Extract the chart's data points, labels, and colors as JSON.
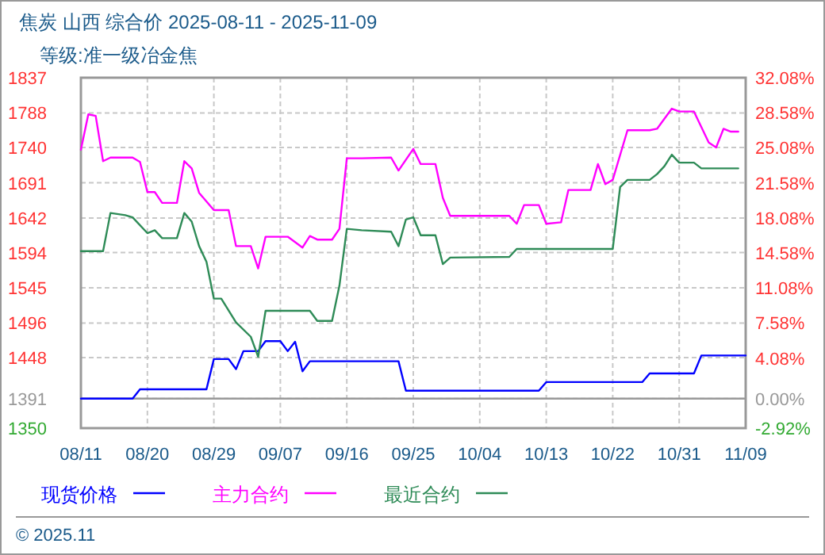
{
  "chart_data": {
    "type": "line",
    "title": "焦炭  山西  综合价  2025-08-11 - 2025-11-09",
    "subtitle": "等级:准一级冶金焦",
    "xlim": [
      "2025-08-11",
      "2025-11-09"
    ],
    "xticks": [
      {
        "value": "2025-08-11",
        "label": "08/11"
      },
      {
        "value": "2025-08-20",
        "label": "08/20"
      },
      {
        "value": "2025-08-29",
        "label": "08/29"
      },
      {
        "value": "2025-09-07",
        "label": "09/07"
      },
      {
        "value": "2025-09-16",
        "label": "09/16"
      },
      {
        "value": "2025-09-25",
        "label": "09/25"
      },
      {
        "value": "2025-10-04",
        "label": "10/04"
      },
      {
        "value": "2025-10-13",
        "label": "10/13"
      },
      {
        "value": "2025-10-22",
        "label": "10/22"
      },
      {
        "value": "2025-10-31",
        "label": "10/31"
      },
      {
        "value": "2025-11-09",
        "label": "11/09"
      }
    ],
    "ylim": [
      1350,
      1837
    ],
    "yticks": [
      1350,
      1391,
      1448,
      1496,
      1545,
      1594,
      1642,
      1691,
      1740,
      1788,
      1837
    ],
    "y2lim": [
      -2.92,
      32.08
    ],
    "y2ticks": [
      {
        "value": -2.92,
        "label": "-2.92%"
      },
      {
        "value": 0,
        "label": "0.00%"
      },
      {
        "value": 4.08,
        "label": "4.08%"
      },
      {
        "value": 7.58,
        "label": "7.58%"
      },
      {
        "value": 11.08,
        "label": "11.08%"
      },
      {
        "value": 14.58,
        "label": "14.58%"
      },
      {
        "value": 18.08,
        "label": "18.08%"
      },
      {
        "value": 21.58,
        "label": "21.58%"
      },
      {
        "value": 25.08,
        "label": "25.08%"
      },
      {
        "value": 28.58,
        "label": "28.58%"
      },
      {
        "value": 32.08,
        "label": "32.08%"
      }
    ],
    "ref_lines": [
      {
        "axis": "y",
        "value": 1391,
        "color": "#999999",
        "line_style": "solid"
      }
    ],
    "grid": true,
    "legend": "bottom",
    "line_style": "solid",
    "marker": "none",
    "annotations": [
      "© 2025.11"
    ],
    "series": [
      {
        "name": "现货价格",
        "color": "#0000ff",
        "x": [
          "2025-08-11",
          "2025-08-18",
          "2025-08-19",
          "2025-08-28",
          "2025-08-29",
          "2025-08-31",
          "2025-09-01",
          "2025-09-02",
          "2025-09-04",
          "2025-09-05",
          "2025-09-07",
          "2025-09-08",
          "2025-09-09",
          "2025-09-10",
          "2025-09-11",
          "2025-09-23",
          "2025-09-24",
          "2025-10-12",
          "2025-10-13",
          "2025-10-26",
          "2025-10-27",
          "2025-11-02",
          "2025-11-03",
          "2025-11-09"
        ],
        "values": [
          1391,
          1391,
          1404,
          1404,
          1446,
          1446,
          1432,
          1457,
          1457,
          1471,
          1471,
          1457,
          1470,
          1429,
          1443,
          1443,
          1402,
          1402,
          1414,
          1414,
          1426,
          1426,
          1451,
          1451
        ]
      },
      {
        "name": "主力合约",
        "color": "#ff00ff",
        "x": [
          "2025-08-11",
          "2025-08-12",
          "2025-08-13",
          "2025-08-14",
          "2025-08-15",
          "2025-08-18",
          "2025-08-19",
          "2025-08-20",
          "2025-08-21",
          "2025-08-22",
          "2025-08-24",
          "2025-08-25",
          "2025-08-26",
          "2025-08-27",
          "2025-08-29",
          "2025-08-31",
          "2025-09-01",
          "2025-09-03",
          "2025-09-04",
          "2025-09-05",
          "2025-09-08",
          "2025-09-10",
          "2025-09-11",
          "2025-09-12",
          "2025-09-14",
          "2025-09-15",
          "2025-09-16",
          "2025-09-18",
          "2025-09-22",
          "2025-09-23",
          "2025-09-25",
          "2025-09-26",
          "2025-09-28",
          "2025-09-29",
          "2025-09-30",
          "2025-10-08",
          "2025-10-09",
          "2025-10-10",
          "2025-10-12",
          "2025-10-13",
          "2025-10-15",
          "2025-10-16",
          "2025-10-19",
          "2025-10-20",
          "2025-10-21",
          "2025-10-22",
          "2025-10-24",
          "2025-10-27",
          "2025-10-28",
          "2025-10-30",
          "2025-10-31",
          "2025-11-02",
          "2025-11-04",
          "2025-11-05",
          "2025-11-06",
          "2025-11-07",
          "2025-11-08"
        ],
        "values": [
          1737,
          1786,
          1784,
          1721,
          1726,
          1726,
          1720,
          1678,
          1678,
          1663,
          1663,
          1721,
          1711,
          1677,
          1653,
          1653,
          1603,
          1603,
          1572,
          1616,
          1616,
          1601,
          1617,
          1612,
          1612,
          1627,
          1725,
          1725,
          1726,
          1708,
          1738,
          1717,
          1717,
          1670,
          1645,
          1645,
          1634,
          1660,
          1660,
          1634,
          1636,
          1681,
          1681,
          1717,
          1689,
          1695,
          1764,
          1764,
          1766,
          1794,
          1790,
          1790,
          1747,
          1740,
          1766,
          1762,
          1762
        ]
      },
      {
        "name": "最近合约",
        "color": "#2e8b57",
        "x": [
          "2025-08-11",
          "2025-08-14",
          "2025-08-15",
          "2025-08-17",
          "2025-08-18",
          "2025-08-20",
          "2025-08-21",
          "2025-08-22",
          "2025-08-24",
          "2025-08-25",
          "2025-08-26",
          "2025-08-27",
          "2025-08-28",
          "2025-08-29",
          "2025-08-30",
          "2025-09-01",
          "2025-09-03",
          "2025-09-04",
          "2025-09-05",
          "2025-09-11",
          "2025-09-12",
          "2025-09-14",
          "2025-09-15",
          "2025-09-16",
          "2025-09-18",
          "2025-09-22",
          "2025-09-23",
          "2025-09-24",
          "2025-09-25",
          "2025-09-26",
          "2025-09-28",
          "2025-09-29",
          "2025-09-30",
          "2025-10-08",
          "2025-10-09",
          "2025-10-22",
          "2025-10-23",
          "2025-10-24",
          "2025-10-27",
          "2025-10-28",
          "2025-10-29",
          "2025-10-30",
          "2025-10-31",
          "2025-11-02",
          "2025-11-03",
          "2025-11-08"
        ],
        "values": [
          1596,
          1596,
          1649,
          1646,
          1643,
          1621,
          1625,
          1614,
          1614,
          1649,
          1637,
          1603,
          1581,
          1530,
          1530,
          1497,
          1477,
          1449,
          1513,
          1513,
          1499,
          1499,
          1548,
          1627,
          1625,
          1623,
          1603,
          1640,
          1643,
          1618,
          1618,
          1578,
          1587,
          1588,
          1599,
          1599,
          1685,
          1695,
          1695,
          1703,
          1714,
          1730,
          1719,
          1719,
          1711,
          1711
        ]
      }
    ]
  }
}
